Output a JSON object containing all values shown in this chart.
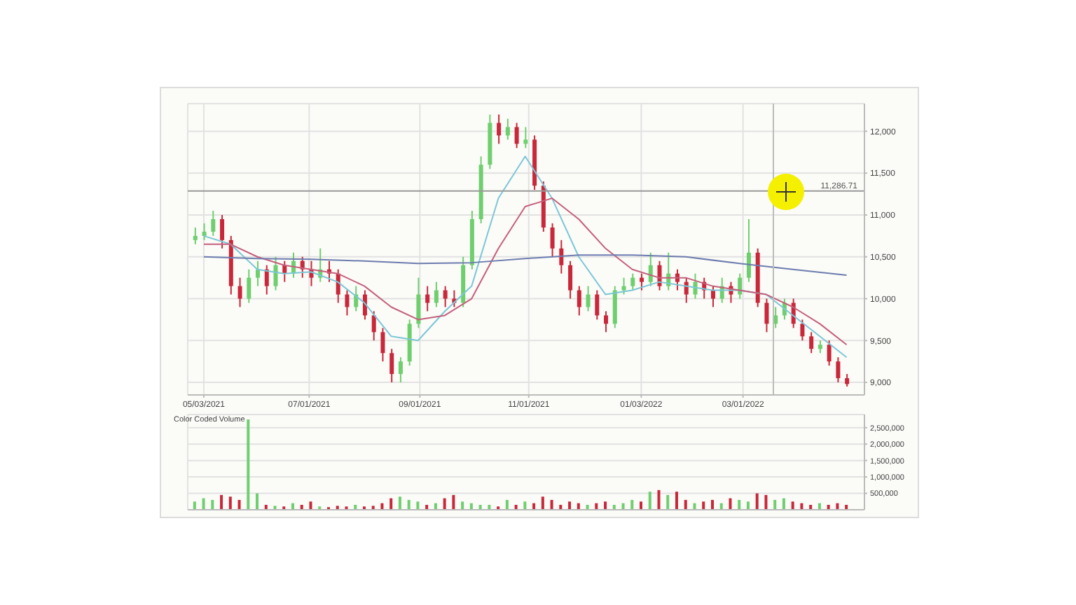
{
  "chart_data": [
    {
      "type": "candlestick",
      "grid": true,
      "xlim": [
        "2021-04-24",
        "2022-05-08"
      ],
      "xticks": [
        {
          "value": "2021-05-03",
          "label": "05/03/2021"
        },
        {
          "value": "2021-07-01",
          "label": "07/01/2021"
        },
        {
          "value": "2021-09-01",
          "label": "09/01/2021"
        },
        {
          "value": "2021-11-01",
          "label": "11/01/2021"
        },
        {
          "value": "2022-01-03",
          "label": "01/03/2022"
        },
        {
          "value": "2022-03-01",
          "label": "03/01/2022"
        }
      ],
      "ylim": [
        8850,
        12330
      ],
      "yticks": [
        {
          "value": 9000,
          "label": "9,000"
        },
        {
          "value": 9500,
          "label": "9,500"
        },
        {
          "value": 10000,
          "label": "10,000"
        },
        {
          "value": 10500,
          "label": "10,500"
        },
        {
          "value": 11000,
          "label": "11,000"
        },
        {
          "value": 11500,
          "label": "11,500"
        },
        {
          "value": 12000,
          "label": "12,000"
        }
      ],
      "ref_lines": [
        {
          "axis": "y",
          "value": 11286.71,
          "label": "11,286.71",
          "color": "#999999"
        },
        {
          "axis": "x",
          "value": "2022-03-18",
          "color": "#bbbbbb"
        }
      ],
      "series": [
        {
          "type": "candlestick",
          "x": [
            "2021-04-28",
            "2021-05-03",
            "2021-05-08",
            "2021-05-13",
            "2021-05-18",
            "2021-05-23",
            "2021-05-28",
            "2021-06-02",
            "2021-06-07",
            "2021-06-12",
            "2021-06-17",
            "2021-06-22",
            "2021-06-27",
            "2021-07-02",
            "2021-07-07",
            "2021-07-12",
            "2021-07-17",
            "2021-07-22",
            "2021-07-27",
            "2021-08-01",
            "2021-08-06",
            "2021-08-11",
            "2021-08-16",
            "2021-08-21",
            "2021-08-26",
            "2021-08-31",
            "2021-09-05",
            "2021-09-10",
            "2021-09-15",
            "2021-09-20",
            "2021-09-25",
            "2021-09-30",
            "2021-10-05",
            "2021-10-10",
            "2021-10-15",
            "2021-10-20",
            "2021-10-25",
            "2021-10-30",
            "2021-11-04",
            "2021-11-09",
            "2021-11-14",
            "2021-11-19",
            "2021-11-24",
            "2021-11-29",
            "2021-12-04",
            "2021-12-09",
            "2021-12-14",
            "2021-12-19",
            "2021-12-24",
            "2021-12-29",
            "2022-01-03",
            "2022-01-08",
            "2022-01-13",
            "2022-01-18",
            "2022-01-23",
            "2022-01-28",
            "2022-02-02",
            "2022-02-07",
            "2022-02-12",
            "2022-02-17",
            "2022-02-22",
            "2022-02-27",
            "2022-03-04",
            "2022-03-09",
            "2022-03-14",
            "2022-03-19",
            "2022-03-24",
            "2022-03-29",
            "2022-04-03",
            "2022-04-08",
            "2022-04-13",
            "2022-04-18",
            "2022-04-23",
            "2022-04-28"
          ],
          "ohlc": [
            [
              10700,
              10850,
              10650,
              10750
            ],
            [
              10750,
              10900,
              10700,
              10800
            ],
            [
              10800,
              11050,
              10750,
              10950
            ],
            [
              10950,
              11000,
              10600,
              10700
            ],
            [
              10700,
              10750,
              10050,
              10150
            ],
            [
              10150,
              10250,
              9900,
              10000
            ],
            [
              10000,
              10350,
              9950,
              10250
            ],
            [
              10250,
              10450,
              10150,
              10350
            ],
            [
              10350,
              10400,
              10050,
              10150
            ],
            [
              10150,
              10500,
              10100,
              10400
            ],
            [
              10400,
              10450,
              10200,
              10300
            ],
            [
              10300,
              10550,
              10250,
              10450
            ],
            [
              10450,
              10500,
              10250,
              10350
            ],
            [
              10350,
              10450,
              10150,
              10250
            ],
            [
              10250,
              10600,
              10200,
              10350
            ],
            [
              10350,
              10450,
              10200,
              10300
            ],
            [
              10300,
              10350,
              9950,
              10050
            ],
            [
              10050,
              10100,
              9800,
              9900
            ],
            [
              9900,
              10150,
              9850,
              10050
            ],
            [
              10050,
              10100,
              9750,
              9800
            ],
            [
              9800,
              9850,
              9500,
              9600
            ],
            [
              9600,
              9650,
              9250,
              9350
            ],
            [
              9350,
              9400,
              9000,
              9100
            ],
            [
              9100,
              9300,
              9000,
              9250
            ],
            [
              9250,
              9750,
              9200,
              9700
            ],
            [
              9700,
              10250,
              9650,
              10050
            ],
            [
              10050,
              10150,
              9850,
              9950
            ],
            [
              9950,
              10200,
              9900,
              10100
            ],
            [
              10100,
              10150,
              9900,
              10000
            ],
            [
              10000,
              10100,
              9900,
              9950
            ],
            [
              9950,
              10500,
              9900,
              10400
            ],
            [
              10400,
              11050,
              10350,
              10950
            ],
            [
              10950,
              11700,
              10900,
              11600
            ],
            [
              11600,
              12200,
              11550,
              12100
            ],
            [
              12100,
              12200,
              11850,
              11950
            ],
            [
              11950,
              12150,
              11900,
              12050
            ],
            [
              12050,
              12100,
              11800,
              11850
            ],
            [
              11850,
              12050,
              11800,
              11900
            ],
            [
              11900,
              11950,
              11300,
              11350
            ],
            [
              11350,
              11400,
              10800,
              10850
            ],
            [
              10850,
              10900,
              10500,
              10600
            ],
            [
              10600,
              10700,
              10300,
              10400
            ],
            [
              10400,
              10450,
              10000,
              10100
            ],
            [
              10100,
              10150,
              9800,
              9900
            ],
            [
              9900,
              10150,
              9850,
              10050
            ],
            [
              10050,
              10100,
              9750,
              9800
            ],
            [
              9800,
              9850,
              9600,
              9700
            ],
            [
              9700,
              10150,
              9650,
              10100
            ],
            [
              10100,
              10250,
              10050,
              10150
            ],
            [
              10150,
              10300,
              10100,
              10250
            ],
            [
              10250,
              10300,
              10100,
              10200
            ],
            [
              10200,
              10550,
              10150,
              10400
            ],
            [
              10400,
              10450,
              10100,
              10150
            ],
            [
              10150,
              10550,
              10100,
              10300
            ],
            [
              10300,
              10350,
              10100,
              10200
            ],
            [
              10200,
              10250,
              9950,
              10050
            ],
            [
              10050,
              10300,
              10000,
              10200
            ],
            [
              10200,
              10250,
              10000,
              10100
            ],
            [
              10100,
              10150,
              9900,
              10000
            ],
            [
              10000,
              10250,
              9950,
              10150
            ],
            [
              10150,
              10200,
              9950,
              10050
            ],
            [
              10050,
              10300,
              10000,
              10250
            ],
            [
              10250,
              10950,
              10200,
              10550
            ],
            [
              10550,
              10600,
              9900,
              9950
            ],
            [
              9950,
              10000,
              9600,
              9700
            ],
            [
              9700,
              9900,
              9650,
              9800
            ],
            [
              9800,
              10000,
              9750,
              9950
            ],
            [
              9950,
              10000,
              9650,
              9700
            ],
            [
              9700,
              9750,
              9500,
              9550
            ],
            [
              9550,
              9600,
              9350,
              9400
            ],
            [
              9400,
              9500,
              9350,
              9450
            ],
            [
              9450,
              9500,
              9200,
              9250
            ],
            [
              9250,
              9300,
              9000,
              9050
            ],
            [
              9050,
              9100,
              8950,
              8980
            ]
          ],
          "colors": [
            "#6fcf6f",
            "#6fcf6f",
            "#6fcf6f",
            "#c8283a",
            "#c8283a",
            "#c8283a",
            "#6fcf6f",
            "#6fcf6f",
            "#c8283a",
            "#6fcf6f",
            "#c8283a",
            "#6fcf6f",
            "#c8283a",
            "#c8283a",
            "#6fcf6f",
            "#c8283a",
            "#c8283a",
            "#c8283a",
            "#6fcf6f",
            "#c8283a",
            "#c8283a",
            "#c8283a",
            "#c8283a",
            "#6fcf6f",
            "#6fcf6f",
            "#6fcf6f",
            "#c8283a",
            "#6fcf6f",
            "#c8283a",
            "#c8283a",
            "#6fcf6f",
            "#6fcf6f",
            "#6fcf6f",
            "#6fcf6f",
            "#c8283a",
            "#6fcf6f",
            "#c8283a",
            "#6fcf6f",
            "#c8283a",
            "#c8283a",
            "#c8283a",
            "#c8283a",
            "#c8283a",
            "#c8283a",
            "#6fcf6f",
            "#c8283a",
            "#c8283a",
            "#6fcf6f",
            "#6fcf6f",
            "#6fcf6f",
            "#c8283a",
            "#6fcf6f",
            "#c8283a",
            "#6fcf6f",
            "#c8283a",
            "#c8283a",
            "#6fcf6f",
            "#c8283a",
            "#c8283a",
            "#6fcf6f",
            "#c8283a",
            "#6fcf6f",
            "#6fcf6f",
            "#c8283a",
            "#c8283a",
            "#6fcf6f",
            "#6fcf6f",
            "#c8283a",
            "#c8283a",
            "#c8283a",
            "#6fcf6f",
            "#c8283a",
            "#c8283a",
            "#c8283a"
          ]
        },
        {
          "type": "line",
          "color": "#7cc7d6",
          "x": [
            "2021-05-03",
            "2021-05-18",
            "2021-06-02",
            "2021-06-17",
            "2021-07-02",
            "2021-07-17",
            "2021-08-01",
            "2021-08-16",
            "2021-08-31",
            "2021-09-15",
            "2021-09-30",
            "2021-10-15",
            "2021-10-30",
            "2021-11-14",
            "2021-11-29",
            "2021-12-14",
            "2021-12-29",
            "2022-01-13",
            "2022-01-28",
            "2022-02-12",
            "2022-02-27",
            "2022-03-14",
            "2022-03-29",
            "2022-04-13",
            "2022-04-28"
          ],
          "values": [
            10750,
            10650,
            10350,
            10300,
            10320,
            10200,
            9950,
            9550,
            9500,
            9850,
            10150,
            11200,
            11700,
            11200,
            10500,
            10050,
            10100,
            10200,
            10150,
            10100,
            10100,
            10050,
            9800,
            9550,
            9300
          ]
        },
        {
          "type": "line",
          "color": "#c4607c",
          "x": [
            "2021-05-03",
            "2021-05-18",
            "2021-06-02",
            "2021-06-17",
            "2021-07-02",
            "2021-07-17",
            "2021-08-01",
            "2021-08-16",
            "2021-08-31",
            "2021-09-15",
            "2021-09-30",
            "2021-10-15",
            "2021-10-30",
            "2021-11-14",
            "2021-11-29",
            "2021-12-14",
            "2021-12-29",
            "2022-01-13",
            "2022-01-28",
            "2022-02-12",
            "2022-02-27",
            "2022-03-14",
            "2022-03-29",
            "2022-04-13",
            "2022-04-28"
          ],
          "values": [
            10650,
            10650,
            10500,
            10400,
            10350,
            10300,
            10150,
            9900,
            9750,
            9800,
            10000,
            10600,
            11100,
            11200,
            10950,
            10600,
            10350,
            10250,
            10250,
            10150,
            10100,
            10050,
            9900,
            9700,
            9450
          ]
        },
        {
          "type": "line",
          "color": "#6c7cae",
          "x": [
            "2021-05-03",
            "2021-06-02",
            "2021-07-02",
            "2021-08-01",
            "2021-08-31",
            "2021-09-30",
            "2021-10-30",
            "2021-11-29",
            "2021-12-29",
            "2022-01-28",
            "2022-02-27",
            "2022-03-29",
            "2022-04-28"
          ],
          "values": [
            10500,
            10480,
            10470,
            10450,
            10420,
            10430,
            10480,
            10520,
            10520,
            10500,
            10420,
            10350,
            10280
          ]
        }
      ]
    },
    {
      "type": "bar",
      "title": "Color Coded Volume",
      "grid": true,
      "tick_labels": "y",
      "xlim": [
        "2021-04-24",
        "2022-05-08"
      ],
      "xticks": [
        {
          "value": "2021-05-03",
          "label": null
        },
        {
          "value": "2021-07-01",
          "label": null
        },
        {
          "value": "2021-09-01",
          "label": null
        },
        {
          "value": "2021-11-01",
          "label": null
        },
        {
          "value": "2022-01-03",
          "label": null
        },
        {
          "value": "2022-03-01",
          "label": null
        }
      ],
      "ylim": [
        0,
        2900000
      ],
      "yticks": [
        {
          "value": 500000,
          "label": "500,000"
        },
        {
          "value": 1000000,
          "label": "1,000,000"
        },
        {
          "value": 1500000,
          "label": "1,500,000"
        },
        {
          "value": 2000000,
          "label": "2,000,000"
        },
        {
          "value": 2500000,
          "label": "2,500,000"
        }
      ],
      "x": [
        "2021-04-28",
        "2021-05-03",
        "2021-05-08",
        "2021-05-13",
        "2021-05-18",
        "2021-05-23",
        "2021-05-28",
        "2021-06-02",
        "2021-06-07",
        "2021-06-12",
        "2021-06-17",
        "2021-06-22",
        "2021-06-27",
        "2021-07-02",
        "2021-07-07",
        "2021-07-12",
        "2021-07-17",
        "2021-07-22",
        "2021-07-27",
        "2021-08-01",
        "2021-08-06",
        "2021-08-11",
        "2021-08-16",
        "2021-08-21",
        "2021-08-26",
        "2021-08-31",
        "2021-09-05",
        "2021-09-10",
        "2021-09-15",
        "2021-09-20",
        "2021-09-25",
        "2021-09-30",
        "2021-10-05",
        "2021-10-10",
        "2021-10-15",
        "2021-10-20",
        "2021-10-25",
        "2021-10-30",
        "2021-11-04",
        "2021-11-09",
        "2021-11-14",
        "2021-11-19",
        "2021-11-24",
        "2021-11-29",
        "2021-12-04",
        "2021-12-09",
        "2021-12-14",
        "2021-12-19",
        "2021-12-24",
        "2021-12-29",
        "2022-01-03",
        "2022-01-08",
        "2022-01-13",
        "2022-01-18",
        "2022-01-23",
        "2022-01-28",
        "2022-02-02",
        "2022-02-07",
        "2022-02-12",
        "2022-02-17",
        "2022-02-22",
        "2022-02-27",
        "2022-03-04",
        "2022-03-09",
        "2022-03-14",
        "2022-03-19",
        "2022-03-24",
        "2022-03-29",
        "2022-04-03",
        "2022-04-08",
        "2022-04-13",
        "2022-04-18",
        "2022-04-23",
        "2022-04-28"
      ],
      "values": [
        250000,
        350000,
        300000,
        450000,
        400000,
        300000,
        2750000,
        500000,
        150000,
        120000,
        100000,
        200000,
        150000,
        250000,
        100000,
        80000,
        120000,
        100000,
        150000,
        100000,
        120000,
        200000,
        350000,
        400000,
        300000,
        250000,
        150000,
        200000,
        350000,
        450000,
        250000,
        200000,
        150000,
        150000,
        100000,
        300000,
        150000,
        250000,
        200000,
        400000,
        300000,
        150000,
        250000,
        200000,
        150000,
        200000,
        250000,
        150000,
        200000,
        300000,
        250000,
        550000,
        600000,
        450000,
        550000,
        300000,
        200000,
        250000,
        300000,
        200000,
        350000,
        300000,
        250000,
        500000,
        450000,
        300000,
        350000,
        250000,
        200000,
        150000,
        200000,
        150000,
        200000,
        150000
      ],
      "colors": [
        "#6fcf6f",
        "#6fcf6f",
        "#6fcf6f",
        "#c8283a",
        "#c8283a",
        "#c8283a",
        "#6fcf6f",
        "#6fcf6f",
        "#c8283a",
        "#6fcf6f",
        "#c8283a",
        "#6fcf6f",
        "#c8283a",
        "#c8283a",
        "#6fcf6f",
        "#c8283a",
        "#c8283a",
        "#c8283a",
        "#6fcf6f",
        "#c8283a",
        "#c8283a",
        "#c8283a",
        "#c8283a",
        "#6fcf6f",
        "#6fcf6f",
        "#6fcf6f",
        "#c8283a",
        "#6fcf6f",
        "#c8283a",
        "#c8283a",
        "#6fcf6f",
        "#6fcf6f",
        "#6fcf6f",
        "#6fcf6f",
        "#c8283a",
        "#6fcf6f",
        "#c8283a",
        "#6fcf6f",
        "#c8283a",
        "#c8283a",
        "#c8283a",
        "#c8283a",
        "#c8283a",
        "#c8283a",
        "#6fcf6f",
        "#c8283a",
        "#c8283a",
        "#6fcf6f",
        "#6fcf6f",
        "#6fcf6f",
        "#c8283a",
        "#6fcf6f",
        "#c8283a",
        "#6fcf6f",
        "#c8283a",
        "#c8283a",
        "#6fcf6f",
        "#c8283a",
        "#c8283a",
        "#6fcf6f",
        "#c8283a",
        "#6fcf6f",
        "#6fcf6f",
        "#c8283a",
        "#c8283a",
        "#6fcf6f",
        "#6fcf6f",
        "#c8283a",
        "#c8283a",
        "#c8283a",
        "#6fcf6f",
        "#c8283a",
        "#c8283a",
        "#c8283a"
      ]
    }
  ]
}
